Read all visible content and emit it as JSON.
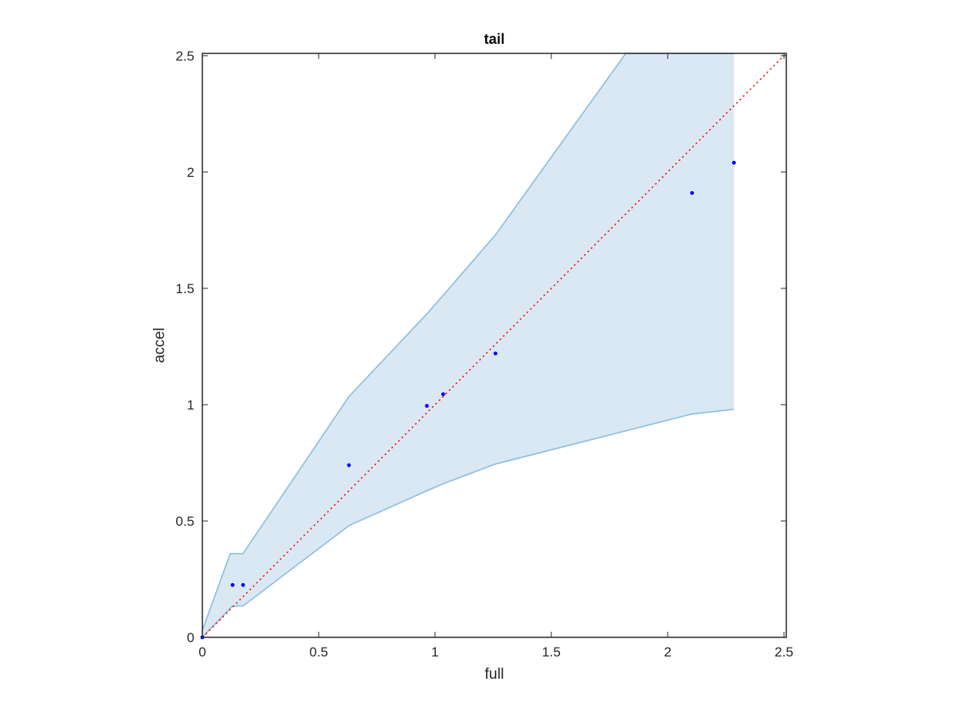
{
  "chart_data": {
    "type": "scatter",
    "title": "tail",
    "xlabel": "full",
    "ylabel": "accel",
    "xlim": [
      0,
      2.51
    ],
    "ylim": [
      0,
      2.51
    ],
    "xticks": [
      0,
      0.5,
      1,
      1.5,
      2,
      2.5
    ],
    "yticks": [
      0,
      0.5,
      1,
      1.5,
      2,
      2.5
    ],
    "xtick_labels": [
      "0",
      "0.5",
      "1",
      "1.5",
      "2",
      "2.5"
    ],
    "ytick_labels": [
      "0",
      "0.5",
      "1",
      "1.5",
      "2",
      "2.5"
    ],
    "grid": false,
    "series": [
      {
        "kind": "points",
        "color": "#0000ff",
        "points": [
          {
            "x": 0.0,
            "y": 0.0
          },
          {
            "x": 0.13,
            "y": 0.225
          },
          {
            "x": 0.175,
            "y": 0.225
          },
          {
            "x": 0.63,
            "y": 0.74
          },
          {
            "x": 0.965,
            "y": 0.995
          },
          {
            "x": 1.035,
            "y": 1.045
          },
          {
            "x": 1.26,
            "y": 1.22
          },
          {
            "x": 2.105,
            "y": 1.91
          },
          {
            "x": 2.285,
            "y": 2.04
          }
        ]
      },
      {
        "kind": "reference-line",
        "color": "#ff0000",
        "style": "dotted",
        "points": [
          {
            "x": 0,
            "y": 0
          },
          {
            "x": 2.51,
            "y": 2.51
          }
        ]
      },
      {
        "kind": "band",
        "fill": "#dae8f4",
        "stroke": "#88bde0",
        "upper": [
          {
            "x": 0.0,
            "y": 0.03
          },
          {
            "x": 0.12,
            "y": 0.36
          },
          {
            "x": 0.175,
            "y": 0.36
          },
          {
            "x": 0.63,
            "y": 1.035
          },
          {
            "x": 0.965,
            "y": 1.39
          },
          {
            "x": 1.035,
            "y": 1.47
          },
          {
            "x": 1.26,
            "y": 1.73
          },
          {
            "x": 1.82,
            "y": 2.51
          },
          {
            "x": 2.285,
            "y": 2.51
          }
        ],
        "lower": [
          {
            "x": 0.0,
            "y": 0.0
          },
          {
            "x": 0.13,
            "y": 0.135
          },
          {
            "x": 0.175,
            "y": 0.135
          },
          {
            "x": 0.63,
            "y": 0.48
          },
          {
            "x": 0.965,
            "y": 0.63
          },
          {
            "x": 1.035,
            "y": 0.66
          },
          {
            "x": 1.26,
            "y": 0.745
          },
          {
            "x": 2.105,
            "y": 0.96
          },
          {
            "x": 2.285,
            "y": 0.98
          }
        ]
      }
    ]
  }
}
